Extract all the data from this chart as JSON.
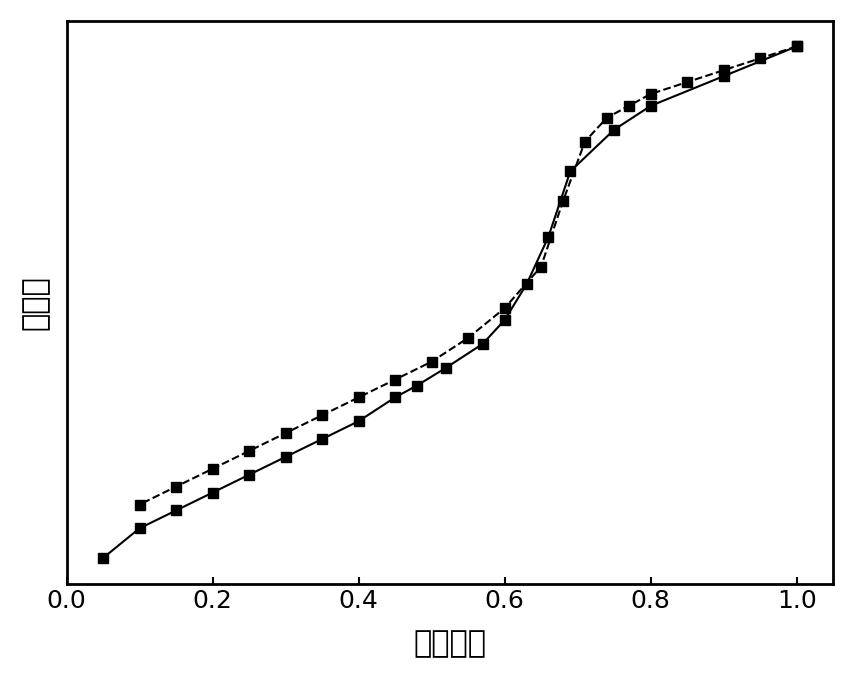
{
  "adsorption_x": [
    0.05,
    0.1,
    0.15,
    0.2,
    0.25,
    0.3,
    0.35,
    0.4,
    0.45,
    0.48,
    0.52,
    0.57,
    0.6,
    0.63,
    0.66,
    0.69,
    0.75,
    0.8,
    0.9,
    1.0
  ],
  "adsorption_y": [
    0.08,
    0.13,
    0.16,
    0.19,
    0.22,
    0.25,
    0.28,
    0.31,
    0.35,
    0.37,
    0.4,
    0.44,
    0.48,
    0.54,
    0.62,
    0.73,
    0.8,
    0.84,
    0.89,
    0.94
  ],
  "desorption_x": [
    1.0,
    0.95,
    0.9,
    0.85,
    0.8,
    0.77,
    0.74,
    0.71,
    0.68,
    0.65,
    0.6,
    0.55,
    0.5,
    0.45,
    0.4,
    0.35,
    0.3,
    0.25,
    0.2,
    0.15,
    0.1
  ],
  "desorption_y": [
    0.94,
    0.92,
    0.9,
    0.88,
    0.86,
    0.84,
    0.82,
    0.78,
    0.68,
    0.57,
    0.5,
    0.45,
    0.41,
    0.38,
    0.35,
    0.32,
    0.29,
    0.26,
    0.23,
    0.2,
    0.17
  ],
  "xlabel": "相对压力",
  "ylabel": "吸附量",
  "xlim": [
    0.0,
    1.05
  ],
  "line_color": "#000000",
  "marker": "s",
  "markersize": 7,
  "linewidth": 1.5,
  "xlabel_fontsize": 22,
  "ylabel_fontsize": 22,
  "tick_fontsize": 18,
  "spine_linewidth": 2.0
}
